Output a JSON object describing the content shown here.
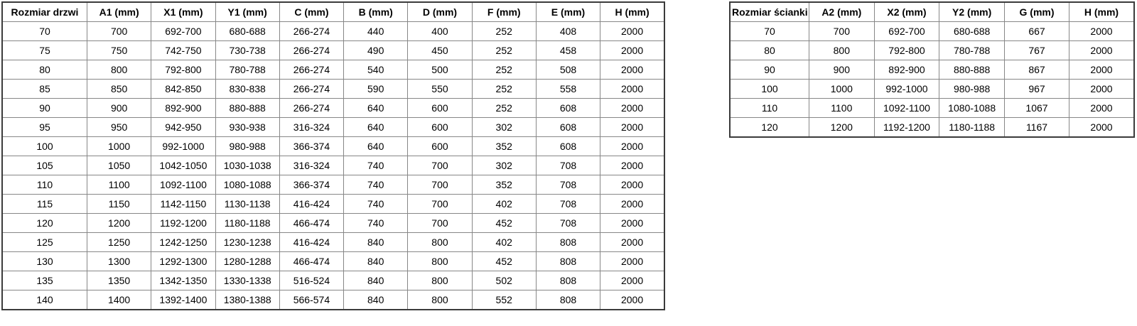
{
  "door_table": {
    "headers": [
      "Rozmiar drzwi",
      "A1 (mm)",
      "X1 (mm)",
      "Y1 (mm)",
      "C (mm)",
      "B (mm)",
      "D (mm)",
      "F (mm)",
      "E (mm)",
      "H (mm)"
    ],
    "rows": [
      [
        "70",
        "700",
        "692-700",
        "680-688",
        "266-274",
        "440",
        "400",
        "252",
        "408",
        "2000"
      ],
      [
        "75",
        "750",
        "742-750",
        "730-738",
        "266-274",
        "490",
        "450",
        "252",
        "458",
        "2000"
      ],
      [
        "80",
        "800",
        "792-800",
        "780-788",
        "266-274",
        "540",
        "500",
        "252",
        "508",
        "2000"
      ],
      [
        "85",
        "850",
        "842-850",
        "830-838",
        "266-274",
        "590",
        "550",
        "252",
        "558",
        "2000"
      ],
      [
        "90",
        "900",
        "892-900",
        "880-888",
        "266-274",
        "640",
        "600",
        "252",
        "608",
        "2000"
      ],
      [
        "95",
        "950",
        "942-950",
        "930-938",
        "316-324",
        "640",
        "600",
        "302",
        "608",
        "2000"
      ],
      [
        "100",
        "1000",
        "992-1000",
        "980-988",
        "366-374",
        "640",
        "600",
        "352",
        "608",
        "2000"
      ],
      [
        "105",
        "1050",
        "1042-1050",
        "1030-1038",
        "316-324",
        "740",
        "700",
        "302",
        "708",
        "2000"
      ],
      [
        "110",
        "1100",
        "1092-1100",
        "1080-1088",
        "366-374",
        "740",
        "700",
        "352",
        "708",
        "2000"
      ],
      [
        "115",
        "1150",
        "1142-1150",
        "1130-1138",
        "416-424",
        "740",
        "700",
        "402",
        "708",
        "2000"
      ],
      [
        "120",
        "1200",
        "1192-1200",
        "1180-1188",
        "466-474",
        "740",
        "700",
        "452",
        "708",
        "2000"
      ],
      [
        "125",
        "1250",
        "1242-1250",
        "1230-1238",
        "416-424",
        "840",
        "800",
        "402",
        "808",
        "2000"
      ],
      [
        "130",
        "1300",
        "1292-1300",
        "1280-1288",
        "466-474",
        "840",
        "800",
        "452",
        "808",
        "2000"
      ],
      [
        "135",
        "1350",
        "1342-1350",
        "1330-1338",
        "516-524",
        "840",
        "800",
        "502",
        "808",
        "2000"
      ],
      [
        "140",
        "1400",
        "1392-1400",
        "1380-1388",
        "566-574",
        "840",
        "800",
        "552",
        "808",
        "2000"
      ]
    ]
  },
  "wall_table": {
    "headers": [
      "Rozmiar ścianki",
      "A2 (mm)",
      "X2 (mm)",
      "Y2 (mm)",
      "G (mm)",
      "H (mm)"
    ],
    "rows": [
      [
        "70",
        "700",
        "692-700",
        "680-688",
        "667",
        "2000"
      ],
      [
        "80",
        "800",
        "792-800",
        "780-788",
        "767",
        "2000"
      ],
      [
        "90",
        "900",
        "892-900",
        "880-888",
        "867",
        "2000"
      ],
      [
        "100",
        "1000",
        "992-1000",
        "980-988",
        "967",
        "2000"
      ],
      [
        "110",
        "1100",
        "1092-1100",
        "1080-1088",
        "1067",
        "2000"
      ],
      [
        "120",
        "1200",
        "1192-1200",
        "1180-1188",
        "1167",
        "2000"
      ]
    ]
  },
  "colors": {
    "border_outer": "#3b3b3b",
    "border_inner": "#878787",
    "text": "#000000",
    "background": "#ffffff"
  }
}
